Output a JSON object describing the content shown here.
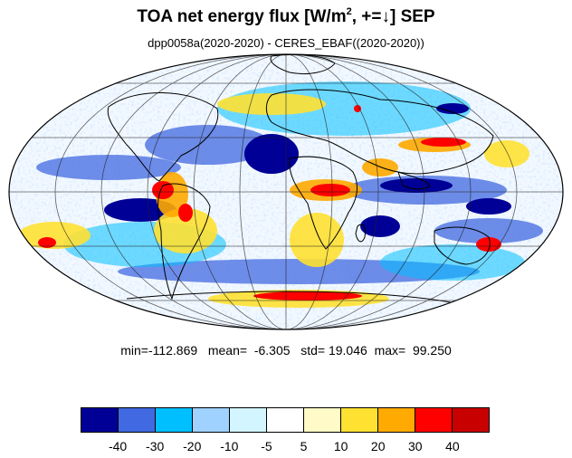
{
  "title": {
    "main": "TOA net energy flux  [W/m",
    "sup": "2",
    "tail": ", +=↓] SEP"
  },
  "subtitle": "dpp0058a(2020-2020) - CERES_EBAF((2020-2020))",
  "stats": {
    "min_label": "min=",
    "min": "-112.869",
    "mean_label": "mean=",
    "mean": "-6.305",
    "std_label": "std=",
    "std": "19.046",
    "max_label": "max=",
    "max": "99.250"
  },
  "colorbar": {
    "colors": [
      "#000096",
      "#4169e1",
      "#00bfff",
      "#a0d2ff",
      "#d2f5ff",
      "#ffffff",
      "#fffac8",
      "#ffe132",
      "#ffaa00",
      "#ff0000",
      "#c80000"
    ],
    "ticks": [
      "-40",
      "-30",
      "-20",
      "-10",
      "-5",
      "5",
      "10",
      "20",
      "30",
      "40"
    ]
  },
  "map": {
    "projection": "mollweide",
    "graticule": "grid lines every 30 degrees"
  }
}
